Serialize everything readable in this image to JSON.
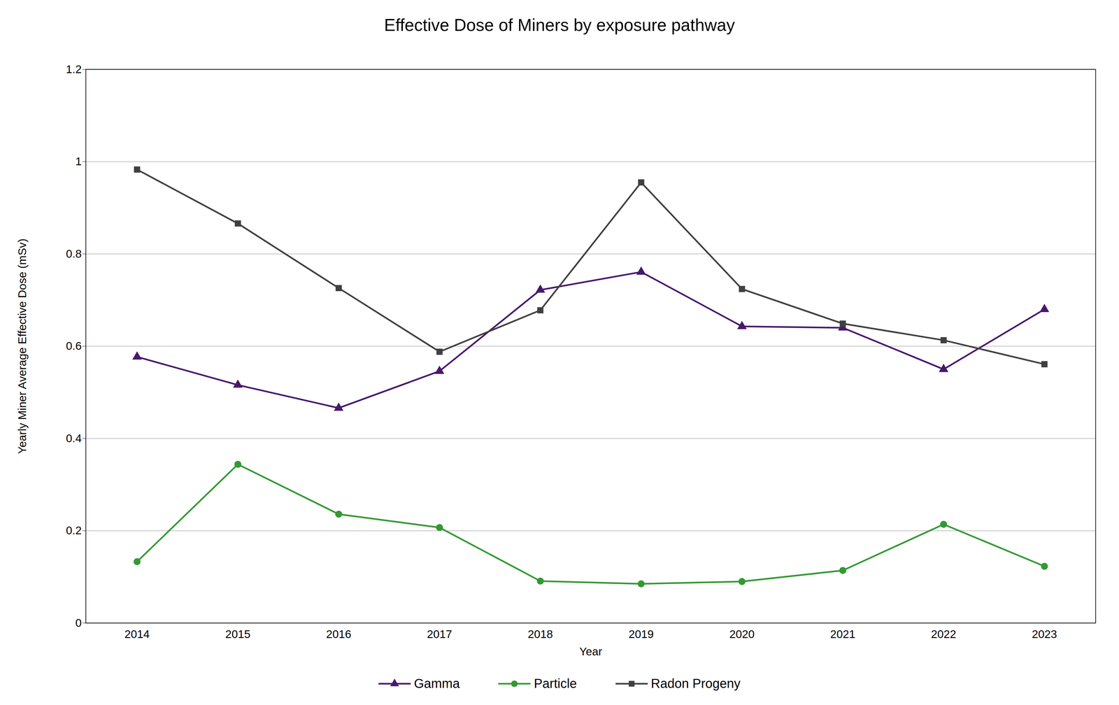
{
  "chart_data": {
    "type": "line",
    "title": "Effective Dose of Miners by exposure pathway",
    "x_label": "Year",
    "y_label": "Yearly Miner Average Effective Dose (mSv)",
    "categories": [
      "2014",
      "2015",
      "2016",
      "2017",
      "2018",
      "2019",
      "2020",
      "2021",
      "2022",
      "2023"
    ],
    "series": [
      {
        "name": "Gamma",
        "color": "#47186c",
        "marker": "triangle",
        "values": [
          0.577,
          0.516,
          0.466,
          0.546,
          0.722,
          0.761,
          0.643,
          0.64,
          0.55,
          0.68
        ]
      },
      {
        "name": "Particle",
        "color": "#339933",
        "marker": "circle",
        "values": [
          0.133,
          0.344,
          0.236,
          0.207,
          0.091,
          0.085,
          0.09,
          0.114,
          0.214,
          0.123
        ]
      },
      {
        "name": "Radon Progeny",
        "color": "#404040",
        "marker": "square",
        "values": [
          0.983,
          0.866,
          0.726,
          0.588,
          0.678,
          0.955,
          0.724,
          0.649,
          0.613,
          0.561
        ]
      }
    ],
    "ylim": [
      0,
      1.2
    ],
    "yticks": [
      0,
      0.2,
      0.4,
      0.6,
      0.8,
      1,
      1.2
    ],
    "grid": true,
    "legend": "bottom"
  }
}
